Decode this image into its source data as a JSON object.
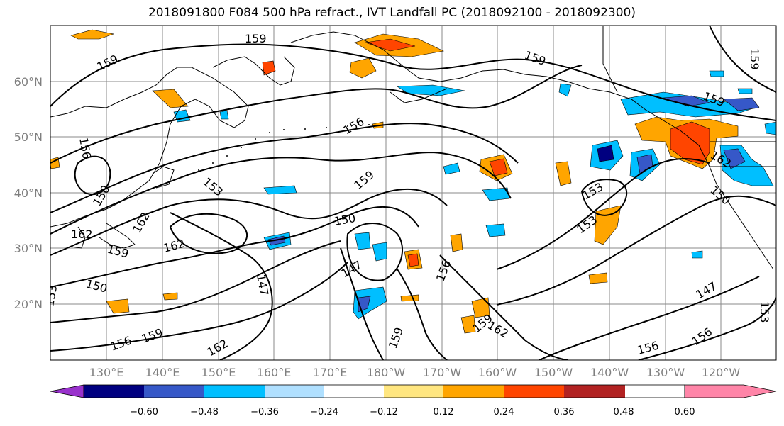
{
  "title": "2018091800 F084 500 hPa refract., IVT Landfall PC (2018092100 - 2018092300)",
  "map": {
    "lat_labels": [
      "60°N",
      "50°N",
      "40°N",
      "30°N",
      "20°N"
    ],
    "lon_labels": [
      "130°E",
      "140°E",
      "150°E",
      "160°E",
      "170°E",
      "180°W",
      "170°W",
      "160°W",
      "150°W",
      "140°W",
      "130°W",
      "120°W"
    ],
    "contour_labels": [
      "159",
      "159",
      "159",
      "159",
      "156",
      "159",
      "153",
      "150",
      "162",
      "162",
      "162",
      "159",
      "150",
      "147",
      "147",
      "150",
      "153",
      "156",
      "159",
      "162",
      "159",
      "156",
      "159",
      "153",
      "153",
      "150",
      "156",
      "147",
      "156",
      "162",
      "159",
      "153",
      "162",
      "156"
    ]
  },
  "colorbar": {
    "ticks": [
      "−0.60",
      "−0.48",
      "−0.36",
      "−0.24",
      "−0.12",
      "0.12",
      "0.24",
      "0.36",
      "0.48",
      "0.60"
    ],
    "colors": [
      "#9932cc",
      "#000080",
      "#3658c8",
      "#00bfff",
      "#b0e0ff",
      "#ffffff",
      "#ffe680",
      "#ffa500",
      "#ff4500",
      "#b22222",
      "#ff85a8"
    ]
  }
}
